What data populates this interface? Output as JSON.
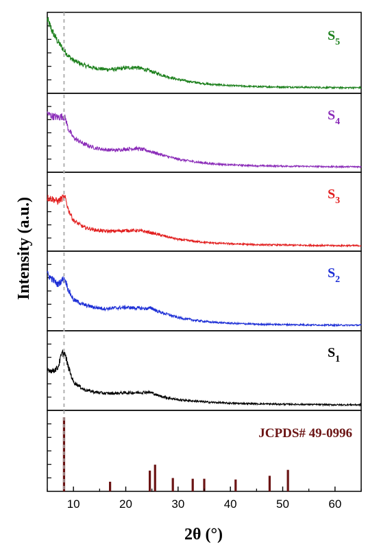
{
  "chart_data": {
    "type": "line",
    "xlabel": "2θ (°)",
    "ylabel": "Intensity (a.u.)",
    "xlim": [
      5,
      65
    ],
    "x_ticks": [
      10,
      20,
      30,
      40,
      50,
      60
    ],
    "x_tick_labels": [
      "10",
      "20",
      "30",
      "40",
      "50",
      "60"
    ],
    "dashed_reference_x": 8.2,
    "series": [
      {
        "name_main": "S",
        "name_sub": "5",
        "color": "#1a7f1a",
        "baseline": 0.07,
        "scale": 0.84,
        "points": [
          [
            5,
            1.0
          ],
          [
            6,
            0.82
          ],
          [
            7,
            0.68
          ],
          [
            8,
            0.57
          ],
          [
            9,
            0.47
          ],
          [
            10,
            0.4
          ],
          [
            12,
            0.33
          ],
          [
            14,
            0.29
          ],
          [
            16,
            0.27
          ],
          [
            18,
            0.27
          ],
          [
            20,
            0.29
          ],
          [
            22,
            0.3
          ],
          [
            24,
            0.26
          ],
          [
            26,
            0.21
          ],
          [
            28,
            0.16
          ],
          [
            30,
            0.12
          ],
          [
            33,
            0.08
          ],
          [
            36,
            0.05
          ],
          [
            40,
            0.03
          ],
          [
            45,
            0.015
          ],
          [
            50,
            0.01
          ],
          [
            55,
            0.005
          ],
          [
            60,
            0.0
          ],
          [
            65,
            0.0
          ]
        ]
      },
      {
        "name_main": "S",
        "name_sub": "4",
        "color": "#8a2bb8",
        "baseline": 0.07,
        "scale": 0.8,
        "points": [
          [
            5,
            0.84
          ],
          [
            6,
            0.8
          ],
          [
            7,
            0.78
          ],
          [
            8,
            0.8
          ],
          [
            8.5,
            0.76
          ],
          [
            9,
            0.6
          ],
          [
            10,
            0.46
          ],
          [
            12,
            0.36
          ],
          [
            14,
            0.3
          ],
          [
            16,
            0.27
          ],
          [
            18,
            0.26
          ],
          [
            20,
            0.28
          ],
          [
            22,
            0.29
          ],
          [
            24,
            0.26
          ],
          [
            26,
            0.21
          ],
          [
            28,
            0.16
          ],
          [
            30,
            0.12
          ],
          [
            33,
            0.08
          ],
          [
            36,
            0.05
          ],
          [
            40,
            0.03
          ],
          [
            45,
            0.015
          ],
          [
            50,
            0.01
          ],
          [
            55,
            0.005
          ],
          [
            60,
            0.0
          ],
          [
            65,
            0.0
          ]
        ]
      },
      {
        "name_main": "S",
        "name_sub": "3",
        "color": "#e21f1f",
        "baseline": 0.07,
        "scale": 0.8,
        "points": [
          [
            5,
            0.76
          ],
          [
            6,
            0.74
          ],
          [
            7,
            0.7
          ],
          [
            8,
            0.76
          ],
          [
            8.5,
            0.74
          ],
          [
            9,
            0.58
          ],
          [
            10,
            0.4
          ],
          [
            12,
            0.29
          ],
          [
            14,
            0.25
          ],
          [
            16,
            0.23
          ],
          [
            18,
            0.23
          ],
          [
            20,
            0.24
          ],
          [
            22,
            0.24
          ],
          [
            24,
            0.22
          ],
          [
            26,
            0.18
          ],
          [
            28,
            0.14
          ],
          [
            30,
            0.1
          ],
          [
            33,
            0.07
          ],
          [
            36,
            0.045
          ],
          [
            40,
            0.03
          ],
          [
            45,
            0.015
          ],
          [
            50,
            0.01
          ],
          [
            55,
            0.005
          ],
          [
            60,
            0.0
          ],
          [
            65,
            0.0
          ]
        ]
      },
      {
        "name_main": "S",
        "name_sub": "2",
        "color": "#1d2fd6",
        "baseline": 0.07,
        "scale": 0.8,
        "points": [
          [
            5,
            0.8
          ],
          [
            6,
            0.72
          ],
          [
            7,
            0.64
          ],
          [
            8,
            0.72
          ],
          [
            8.5,
            0.7
          ],
          [
            9,
            0.56
          ],
          [
            10,
            0.4
          ],
          [
            12,
            0.32
          ],
          [
            14,
            0.28
          ],
          [
            16,
            0.26
          ],
          [
            18,
            0.27
          ],
          [
            20,
            0.28
          ],
          [
            22,
            0.27
          ],
          [
            24,
            0.26
          ],
          [
            25,
            0.27
          ],
          [
            26,
            0.22
          ],
          [
            28,
            0.17
          ],
          [
            30,
            0.12
          ],
          [
            33,
            0.08
          ],
          [
            36,
            0.05
          ],
          [
            40,
            0.03
          ],
          [
            45,
            0.015
          ],
          [
            50,
            0.01
          ],
          [
            55,
            0.005
          ],
          [
            60,
            0.0
          ],
          [
            65,
            0.0
          ]
        ]
      },
      {
        "name_main": "S",
        "name_sub": "1",
        "color": "#000000",
        "baseline": 0.07,
        "scale": 0.8,
        "points": [
          [
            5,
            0.56
          ],
          [
            6,
            0.53
          ],
          [
            7,
            0.58
          ],
          [
            7.8,
            0.8
          ],
          [
            8.3,
            0.82
          ],
          [
            9,
            0.6
          ],
          [
            10,
            0.36
          ],
          [
            12,
            0.24
          ],
          [
            14,
            0.2
          ],
          [
            16,
            0.18
          ],
          [
            18,
            0.18
          ],
          [
            20,
            0.19
          ],
          [
            22,
            0.19
          ],
          [
            24,
            0.2
          ],
          [
            25,
            0.19
          ],
          [
            26,
            0.15
          ],
          [
            28,
            0.11
          ],
          [
            30,
            0.08
          ],
          [
            33,
            0.06
          ],
          [
            36,
            0.04
          ],
          [
            40,
            0.025
          ],
          [
            45,
            0.015
          ],
          [
            50,
            0.01
          ],
          [
            55,
            0.005
          ],
          [
            60,
            0.0
          ],
          [
            65,
            0.0
          ]
        ]
      }
    ],
    "reference": {
      "label": "JCPDS# 49-0996",
      "color": "#6b1414",
      "peaks": [
        [
          8.2,
          100
        ],
        [
          17,
          13
        ],
        [
          24.6,
          28
        ],
        [
          25.6,
          36
        ],
        [
          29,
          18
        ],
        [
          32.8,
          17
        ],
        [
          35,
          17
        ],
        [
          41,
          16
        ],
        [
          47.5,
          21
        ],
        [
          51,
          29
        ]
      ]
    }
  }
}
